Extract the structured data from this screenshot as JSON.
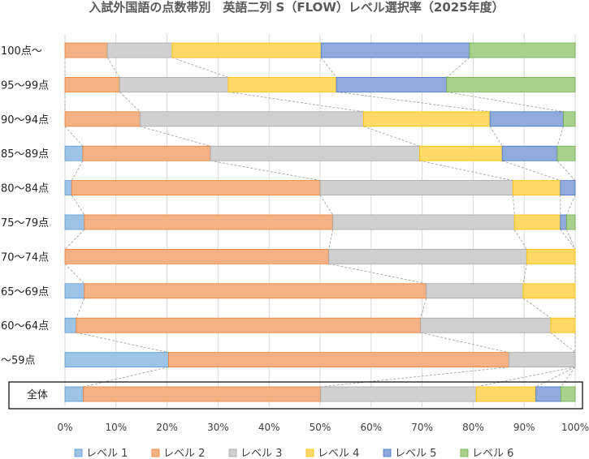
{
  "chart_data": {
    "type": "bar",
    "orientation": "horizontal",
    "stacked": "100%",
    "title": "入試外国語の点数帯別　英語二列 S（FLOW）レベル選択率（2025年度）",
    "categories": [
      "100点～",
      "95～99点",
      "90～94点",
      "85～89点",
      "80～84点",
      "75～79点",
      "70～74点",
      "65～69点",
      "60～64点",
      "～59点",
      "全体"
    ],
    "highlighted_category": "全体",
    "xlim": [
      0,
      100
    ],
    "x_ticks": [
      "0%",
      "10%",
      "20%",
      "30%",
      "40%",
      "50%",
      "60%",
      "70%",
      "80%",
      "90%",
      "100%"
    ],
    "gridlines": "vertical",
    "legend_position": "bottom",
    "series_connector_lines": true,
    "series": [
      {
        "name": "レベル 1",
        "color": "#9dc3e6",
        "stroke": "#5b9bd5",
        "values": [
          0,
          0,
          0,
          3.5,
          1.3,
          3.8,
          0,
          3.8,
          2.2,
          20.3,
          3.6
        ]
      },
      {
        "name": "レベル 2",
        "color": "#f4b183",
        "stroke": "#ed7d31",
        "values": [
          8.3,
          10.7,
          14.7,
          25.0,
          48.7,
          48.7,
          51.7,
          67.0,
          67.5,
          66.7,
          46.5
        ]
      },
      {
        "name": "レベル 3",
        "color": "#d0d0d0",
        "stroke": "#a5a5a5",
        "values": [
          12.7,
          21.3,
          43.8,
          41.0,
          37.8,
          35.6,
          38.8,
          19.0,
          25.5,
          13.0,
          30.5
        ]
      },
      {
        "name": "レベル 4",
        "color": "#ffd966",
        "stroke": "#ffc000",
        "values": [
          29.2,
          21.2,
          24.8,
          16.2,
          9.3,
          9.0,
          9.5,
          10.2,
          4.8,
          0,
          11.7
        ]
      },
      {
        "name": "レベル 5",
        "color": "#8faadc",
        "stroke": "#4472c4",
        "values": [
          29.1,
          21.6,
          14.4,
          10.8,
          2.9,
          1.2,
          0,
          0,
          0,
          0,
          4.9
        ]
      },
      {
        "name": "レベル 6",
        "color": "#a9d18e",
        "stroke": "#70ad47",
        "values": [
          20.7,
          25.2,
          2.3,
          3.5,
          0,
          1.7,
          0,
          0,
          0,
          0,
          2.8
        ]
      }
    ]
  }
}
